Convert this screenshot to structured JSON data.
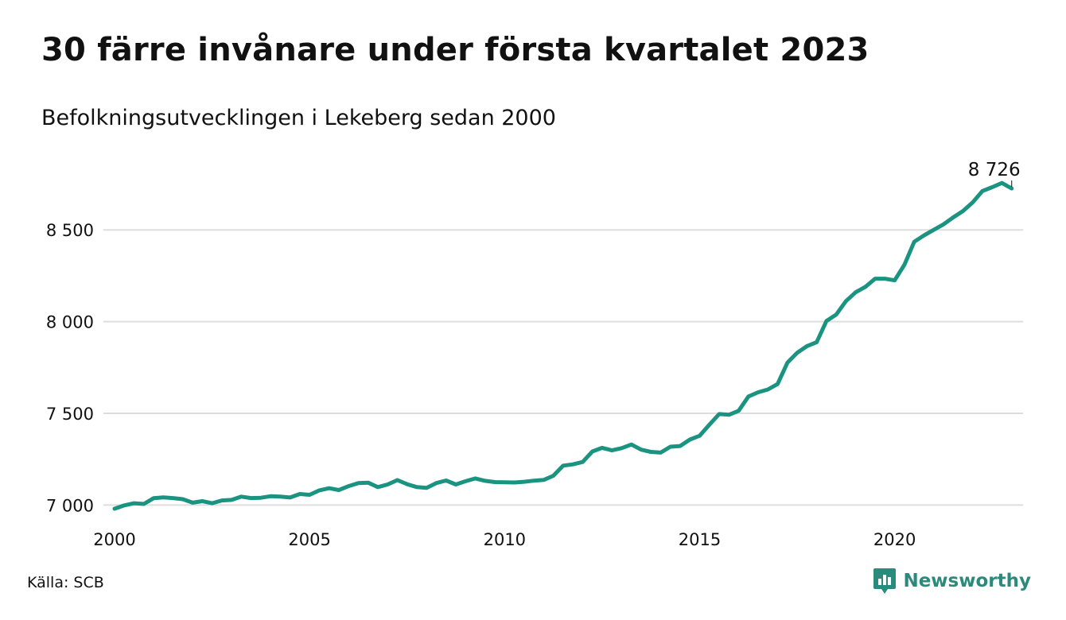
{
  "title": "30 färre invånare under första kvartalet 2023",
  "subtitle": "Befolkningsutvecklingen i Lekeberg sedan 2000",
  "source": "Källa: SCB",
  "brand": {
    "name": "Newsworthy",
    "icon": "newsworthy-logo-icon",
    "color": "#2a8a7b"
  },
  "colors": {
    "line": "#1a9480",
    "grid": "#dddddd"
  },
  "chart_data": {
    "type": "line",
    "title": "",
    "xlabel": "",
    "ylabel": "",
    "xlim": [
      2000,
      2023.25
    ],
    "ylim": [
      6980,
      8800
    ],
    "yticks": [
      7000,
      7500,
      8000,
      8500
    ],
    "ytick_labels": [
      "7 000",
      "7 500",
      "8 000",
      "8 500"
    ],
    "xticks": [
      2000,
      2005,
      2010,
      2015,
      2020
    ],
    "xtick_labels": [
      "2000",
      "2005",
      "2010",
      "2015",
      "2020"
    ],
    "grid": true,
    "end_label": "8 726",
    "series": [
      {
        "x": [
          2000,
          2000.25,
          2000.5,
          2000.75,
          2001,
          2001.25,
          2001.5,
          2001.75,
          2002,
          2002.25,
          2002.5,
          2002.75,
          2003,
          2003.25,
          2003.5,
          2003.75,
          2004,
          2004.25,
          2004.5,
          2004.75,
          2005,
          2005.25,
          2005.5,
          2005.75,
          2006,
          2006.25,
          2006.5,
          2006.75,
          2007,
          2007.25,
          2007.5,
          2007.75,
          2008,
          2008.25,
          2008.5,
          2008.75,
          2009,
          2009.25,
          2009.5,
          2009.75,
          2010,
          2010.25,
          2010.5,
          2010.75,
          2011,
          2011.25,
          2011.5,
          2011.75,
          2012,
          2012.25,
          2012.5,
          2012.75,
          2013,
          2013.25,
          2013.5,
          2013.75,
          2014,
          2014.25,
          2014.5,
          2014.75,
          2015,
          2015.25,
          2015.5,
          2015.75,
          2016,
          2016.25,
          2016.5,
          2016.75,
          2017,
          2017.25,
          2017.5,
          2017.75,
          2018,
          2018.25,
          2018.5,
          2018.75,
          2019,
          2019.25,
          2019.5,
          2019.75,
          2020,
          2020.25,
          2020.5,
          2020.75,
          2021,
          2021.25,
          2021.5,
          2021.75,
          2022,
          2022.25,
          2022.5,
          2022.75,
          2023
        ],
        "values": [
          6980,
          6998,
          7010,
          7006,
          7037,
          7042,
          7038,
          7032,
          7013,
          7021,
          7010,
          7025,
          7028,
          7046,
          7038,
          7040,
          7048,
          7046,
          7041,
          7060,
          7056,
          7080,
          7092,
          7082,
          7103,
          7120,
          7122,
          7098,
          7112,
          7136,
          7114,
          7098,
          7094,
          7120,
          7134,
          7112,
          7130,
          7145,
          7132,
          7125,
          7124,
          7123,
          7127,
          7133,
          7137,
          7160,
          7215,
          7222,
          7235,
          7292,
          7312,
          7298,
          7310,
          7330,
          7302,
          7290,
          7286,
          7318,
          7322,
          7357,
          7378,
          7438,
          7496,
          7492,
          7514,
          7592,
          7615,
          7630,
          7660,
          7776,
          7830,
          7866,
          7888,
          8003,
          8038,
          8112,
          8160,
          8190,
          8234,
          8234,
          8225,
          8310,
          8435,
          8470,
          8500,
          8530,
          8568,
          8603,
          8650,
          8712,
          8733,
          8756,
          8726
        ]
      }
    ]
  }
}
